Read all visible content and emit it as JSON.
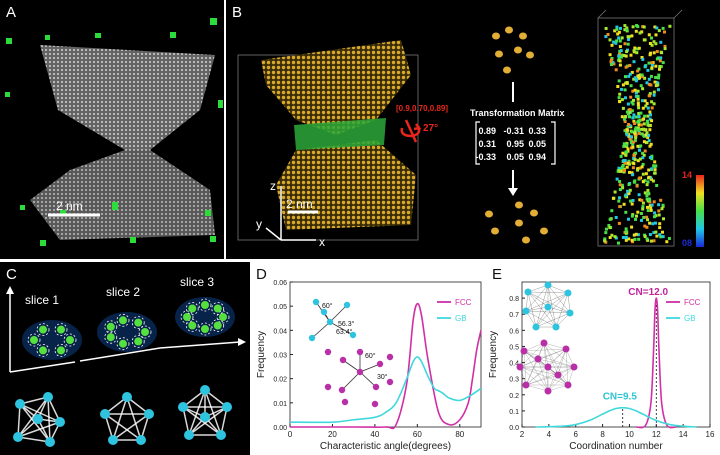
{
  "panels": {
    "A": {
      "letter": "A",
      "scale_bar": "2 nm"
    },
    "B": {
      "letter": "B",
      "scale_bar": "2 nm",
      "axes": {
        "z": "z",
        "y": "y",
        "x": "x"
      },
      "rotation_axis": "[0.9,0.70,0.89]",
      "rotation_angle": "27°",
      "matrix_title": "Transformation Matrix",
      "matrix_rows": [
        [
          "0.89",
          "-0.31",
          "0.33"
        ],
        [
          "0.31",
          "0.95",
          "0.05"
        ],
        [
          "-0.33",
          "0.05",
          "0.94"
        ]
      ],
      "colorbar_max": "14",
      "colorbar_min": "08"
    },
    "C": {
      "letter": "C",
      "slices": [
        "slice 1",
        "slice 2",
        "slice 3"
      ]
    },
    "D": {
      "letter": "D",
      "angle_labels": [
        "60°",
        "56.3°",
        "63.4°",
        "60°",
        "30°"
      ]
    },
    "E": {
      "letter": "E",
      "annotations": [
        "CN=12.0",
        "CN=9.5"
      ]
    }
  },
  "chart_data": [
    {
      "type": "line",
      "panel": "D",
      "xlabel": "Characteristic angle(degrees)",
      "ylabel": "Frequency",
      "xlim": [
        0,
        90
      ],
      "ylim": [
        0,
        0.06
      ],
      "xticks": [
        "0",
        "20",
        "40",
        "60",
        "80"
      ],
      "yticks": [
        "0.00",
        "0.01",
        "0.02",
        "0.03",
        "0.04",
        "0.05",
        "0.06"
      ],
      "legend_position": "top-right",
      "series": [
        {
          "name": "FCC",
          "color": "#d02fa6",
          "x": [
            0,
            30,
            45,
            50,
            55,
            58,
            60,
            62,
            65,
            70,
            75,
            80,
            84,
            86,
            88,
            90
          ],
          "y": [
            0,
            0,
            0,
            0.001,
            0.018,
            0.044,
            0.051,
            0.046,
            0.028,
            0.006,
            0.001,
            0.003,
            0.01,
            0.02,
            0.032,
            0.04
          ]
        },
        {
          "name": "GB",
          "color": "#3fd8dc",
          "x": [
            0,
            20,
            30,
            40,
            45,
            50,
            55,
            58,
            60,
            62,
            65,
            68,
            70,
            72,
            75,
            80,
            85,
            90
          ],
          "y": [
            0.002,
            0.002,
            0.003,
            0.004,
            0.006,
            0.01,
            0.02,
            0.027,
            0.029,
            0.027,
            0.021,
            0.016,
            0.015,
            0.014,
            0.012,
            0.011,
            0.013,
            0.016
          ]
        }
      ]
    },
    {
      "type": "line",
      "panel": "E",
      "xlabel": "Coordination number",
      "ylabel": "Frequency",
      "xlim": [
        2,
        16
      ],
      "ylim": [
        0,
        0.9
      ],
      "xticks": [
        "2",
        "4",
        "6",
        "8",
        "10",
        "12",
        "14",
        "16"
      ],
      "yticks": [
        "0.0",
        "0.1",
        "0.2",
        "0.3",
        "0.4",
        "0.5",
        "0.6",
        "0.7",
        "0.8"
      ],
      "legend_position": "top-right",
      "series": [
        {
          "name": "FCC",
          "color": "#d02fa6",
          "x": [
            10.5,
            11.2,
            11.6,
            11.8,
            11.9,
            12.0,
            12.1,
            12.2,
            12.4,
            12.8,
            13.5
          ],
          "y": [
            0,
            0.01,
            0.15,
            0.48,
            0.72,
            0.8,
            0.72,
            0.48,
            0.15,
            0.01,
            0
          ]
        },
        {
          "name": "GB",
          "color": "#3fd8dc",
          "x": [
            3,
            5,
            6,
            7,
            8,
            8.5,
            9,
            9.5,
            10,
            10.5,
            11,
            12,
            13,
            14,
            15
          ],
          "y": [
            0,
            0.005,
            0.015,
            0.04,
            0.08,
            0.1,
            0.115,
            0.12,
            0.115,
            0.1,
            0.08,
            0.04,
            0.015,
            0.005,
            0
          ]
        }
      ]
    }
  ]
}
